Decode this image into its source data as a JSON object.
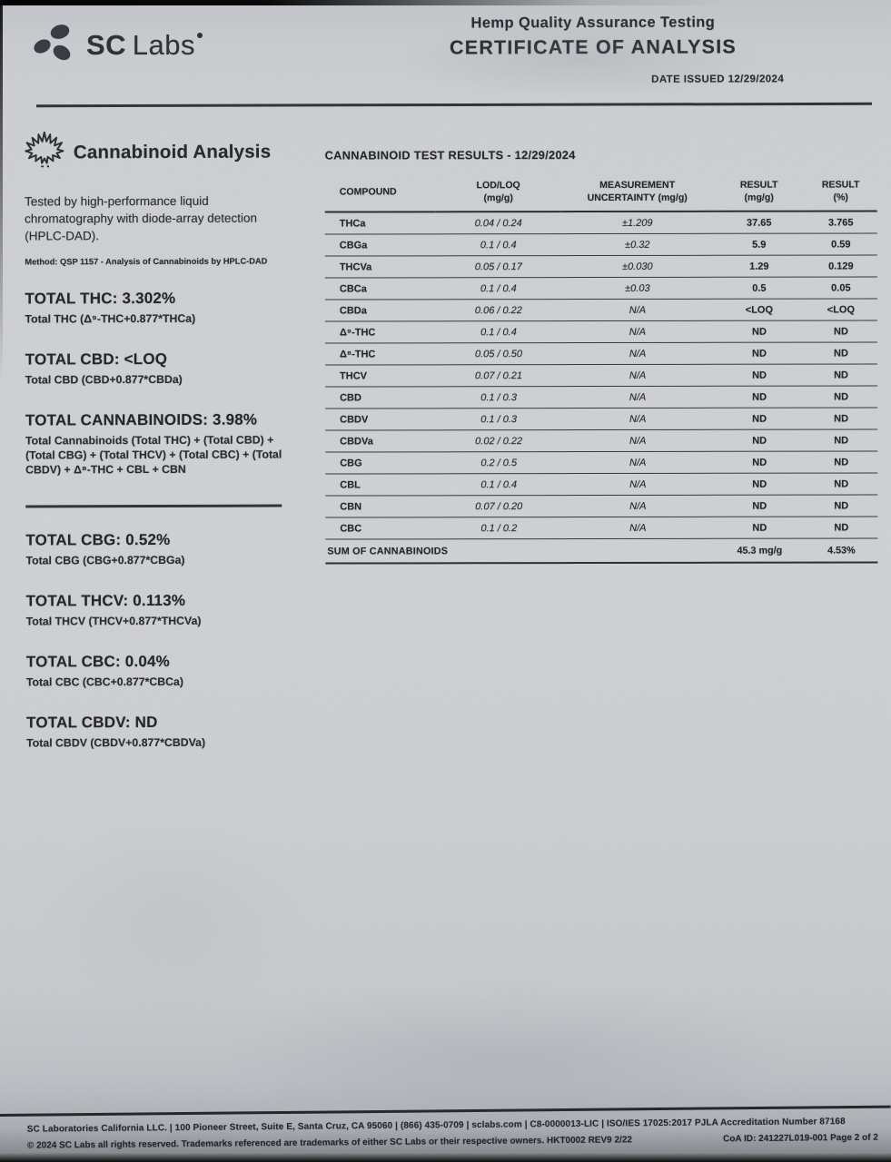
{
  "header": {
    "logo_sc": "SC",
    "logo_labs": "Labs",
    "program": "Hemp Quality Assurance Testing",
    "title": "CERTIFICATE OF ANALYSIS",
    "date_issued": "DATE ISSUED 12/29/2024"
  },
  "left_panel": {
    "section_title": "Cannabinoid Analysis",
    "description": "Tested by high-performance liquid chromatography with diode-array detection (HPLC-DAD).",
    "method": "Method: QSP 1157 - Analysis of Cannabinoids by HPLC-DAD",
    "totals_primary": [
      {
        "label": "TOTAL THC: 3.302%",
        "formula": "Total THC (Δ⁹-THC+0.877*THCa)"
      },
      {
        "label": "TOTAL CBD: <LOQ",
        "formula": "Total CBD (CBD+0.877*CBDa)"
      },
      {
        "label": "TOTAL CANNABINOIDS: 3.98%",
        "formula": "Total Cannabinoids (Total THC) + (Total CBD) + (Total CBG) + (Total THCV) + (Total CBC) + (Total CBDV) + Δ⁸-THC + CBL + CBN"
      }
    ],
    "totals_secondary": [
      {
        "label": "TOTAL CBG: 0.52%",
        "formula": "Total CBG (CBG+0.877*CBGa)"
      },
      {
        "label": "TOTAL THCV: 0.113%",
        "formula": "Total THCV (THCV+0.877*THCVa)"
      },
      {
        "label": "TOTAL CBC: 0.04%",
        "formula": "Total CBC (CBC+0.877*CBCa)"
      },
      {
        "label": "TOTAL CBDV: ND",
        "formula": "Total CBDV (CBDV+0.877*CBDVa)"
      }
    ]
  },
  "results_table": {
    "title": "CANNABINOID TEST RESULTS - 12/29/2024",
    "columns": [
      {
        "line1": "COMPOUND",
        "line2": ""
      },
      {
        "line1": "LOD/LOQ",
        "line2": "(mg/g)"
      },
      {
        "line1": "MEASUREMENT",
        "line2": "UNCERTAINTY (mg/g)"
      },
      {
        "line1": "RESULT",
        "line2": "(mg/g)"
      },
      {
        "line1": "RESULT",
        "line2": "(%)"
      }
    ],
    "rows": [
      {
        "compound": "THCa",
        "lod_loq": "0.04 / 0.24",
        "uncertainty": "±1.209",
        "result_mg": "37.65",
        "result_pct": "3.765"
      },
      {
        "compound": "CBGa",
        "lod_loq": "0.1 / 0.4",
        "uncertainty": "±0.32",
        "result_mg": "5.9",
        "result_pct": "0.59"
      },
      {
        "compound": "THCVa",
        "lod_loq": "0.05 / 0.17",
        "uncertainty": "±0.030",
        "result_mg": "1.29",
        "result_pct": "0.129"
      },
      {
        "compound": "CBCa",
        "lod_loq": "0.1 / 0.4",
        "uncertainty": "±0.03",
        "result_mg": "0.5",
        "result_pct": "0.05"
      },
      {
        "compound": "CBDa",
        "lod_loq": "0.06 / 0.22",
        "uncertainty": "N/A",
        "result_mg": "<LOQ",
        "result_pct": "<LOQ"
      },
      {
        "compound": "Δ⁹-THC",
        "lod_loq": "0.1 / 0.4",
        "uncertainty": "N/A",
        "result_mg": "ND",
        "result_pct": "ND"
      },
      {
        "compound": "Δ⁸-THC",
        "lod_loq": "0.05 / 0.50",
        "uncertainty": "N/A",
        "result_mg": "ND",
        "result_pct": "ND"
      },
      {
        "compound": "THCV",
        "lod_loq": "0.07 / 0.21",
        "uncertainty": "N/A",
        "result_mg": "ND",
        "result_pct": "ND"
      },
      {
        "compound": "CBD",
        "lod_loq": "0.1 / 0.3",
        "uncertainty": "N/A",
        "result_mg": "ND",
        "result_pct": "ND"
      },
      {
        "compound": "CBDV",
        "lod_loq": "0.1 / 0.3",
        "uncertainty": "N/A",
        "result_mg": "ND",
        "result_pct": "ND"
      },
      {
        "compound": "CBDVa",
        "lod_loq": "0.02 / 0.22",
        "uncertainty": "N/A",
        "result_mg": "ND",
        "result_pct": "ND"
      },
      {
        "compound": "CBG",
        "lod_loq": "0.2 / 0.5",
        "uncertainty": "N/A",
        "result_mg": "ND",
        "result_pct": "ND"
      },
      {
        "compound": "CBL",
        "lod_loq": "0.1 / 0.4",
        "uncertainty": "N/A",
        "result_mg": "ND",
        "result_pct": "ND"
      },
      {
        "compound": "CBN",
        "lod_loq": "0.07 / 0.20",
        "uncertainty": "N/A",
        "result_mg": "ND",
        "result_pct": "ND"
      },
      {
        "compound": "CBC",
        "lod_loq": "0.1 / 0.2",
        "uncertainty": "N/A",
        "result_mg": "ND",
        "result_pct": "ND"
      }
    ],
    "summary": {
      "label": "SUM OF CANNABINOIDS",
      "result_mg": "45.3 mg/g",
      "result_pct": "4.53%"
    }
  },
  "footer": {
    "line1": "SC Laboratories California LLC. | 100 Pioneer Street, Suite E, Santa Cruz, CA 95060 | (866) 435-0709 | sclabs.com | C8-0000013-LIC | ISO/IES 17025:2017 PJLA Accreditation Number 87168",
    "line2": "© 2024 SC Labs all rights reserved. Trademarks referenced are trademarks of either SC Labs or their respective owners. HKT0002 REV9 2/22",
    "coa_id": "CoA ID: 241227L019-001 Page 2 of 2"
  },
  "colors": {
    "paper": "#d5d7da",
    "ink": "#24262c",
    "rule": "#34373d"
  }
}
